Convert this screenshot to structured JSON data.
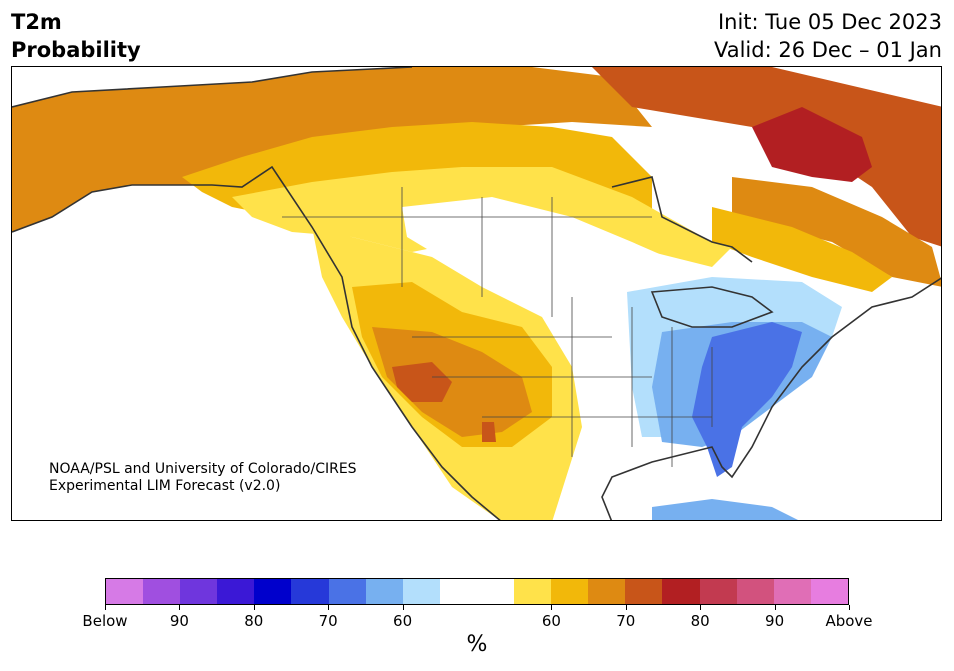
{
  "header": {
    "title_line1": "T2m",
    "title_line2": "Probability",
    "init": "Init: Tue 05 Dec 2023",
    "valid": "Valid: 26 Dec – 01 Jan"
  },
  "credit": {
    "line1": "NOAA/PSL and University of Colorado/CIRES",
    "line2": "Experimental LIM Forecast (v2.0)"
  },
  "colorbar": {
    "unit": "%",
    "colors": [
      "#d67ae6",
      "#a04fe0",
      "#6f36dd",
      "#3b18d6",
      "#0000cc",
      "#2639d9",
      "#4a72e6",
      "#77b0f0",
      "#b3dffc",
      "#ffffff",
      "#ffffff",
      "#ffe24a",
      "#f2b80a",
      "#de8a12",
      "#c85519",
      "#b21f22",
      "#c23a50",
      "#d2527e",
      "#e06eb6",
      "#e77de0"
    ],
    "tick_labels": [
      "Below",
      "90",
      "80",
      "70",
      "60",
      "60",
      "70",
      "80",
      "90",
      "Above"
    ]
  },
  "legend_meaning": {
    "cool_side": "Below-normal probability (blue/purple)",
    "warm_side": "Above-normal probability (yellow/orange/red)"
  }
}
